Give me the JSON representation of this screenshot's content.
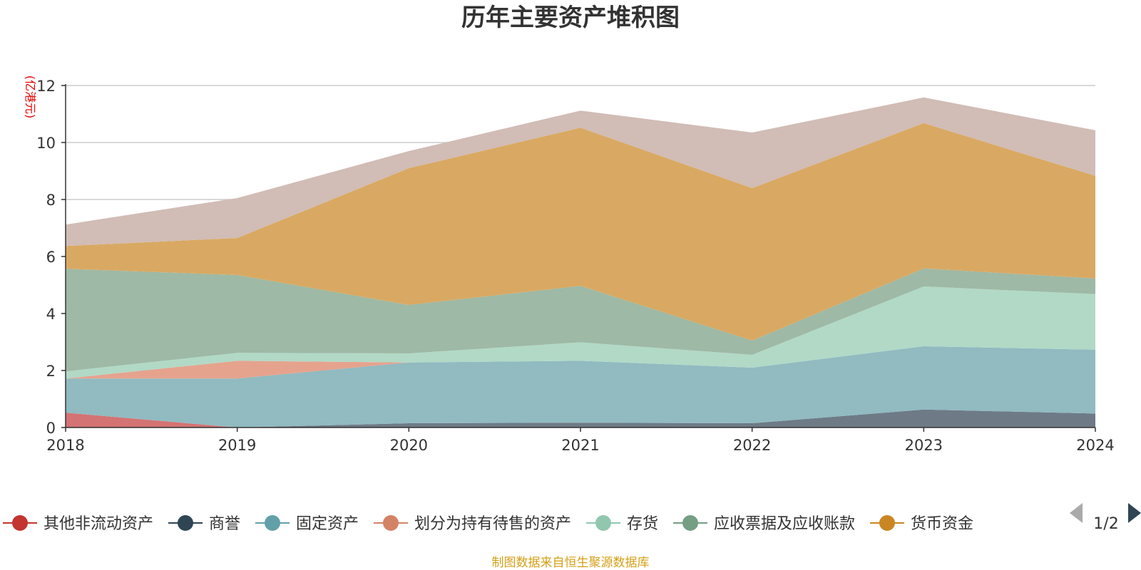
{
  "chart_data": {
    "type": "area",
    "stacked": true,
    "title": "历年主要资产堆积图",
    "unit_label": "(亿港元)",
    "source_note": "制图数据来自恒生聚源数据库",
    "categories": [
      "2018",
      "2019",
      "2020",
      "2021",
      "2022",
      "2023",
      "2024"
    ],
    "ylim": [
      0,
      12
    ],
    "yticks": [
      0,
      2,
      4,
      6,
      8,
      10,
      12
    ],
    "grid": true,
    "legend_position": "bottom",
    "legend_page": "1/2",
    "series": [
      {
        "name": "其他非流动资产",
        "color": "#c23531",
        "fill": "#d47373",
        "values": [
          0.52,
          0.0,
          0.0,
          0.0,
          0.0,
          0.0,
          0.0
        ]
      },
      {
        "name": "商誉",
        "color": "#2f4554",
        "fill": "#6e7b86",
        "values": [
          0.0,
          0.0,
          0.15,
          0.17,
          0.15,
          0.63,
          0.49
        ]
      },
      {
        "name": "固定资产",
        "color": "#61a0a8",
        "fill": "#91bac1",
        "values": [
          1.2,
          1.72,
          2.13,
          2.17,
          1.95,
          2.22,
          2.24
        ]
      },
      {
        "name": "划分为持有待售的资产",
        "color": "#d48265",
        "fill": "#e5a38e",
        "values": [
          0.0,
          0.62,
          0.0,
          0.0,
          0.0,
          0.0,
          0.0
        ]
      },
      {
        "name": "存货",
        "color": "#91c7ae",
        "fill": "#b1d9c6",
        "values": [
          0.25,
          0.28,
          0.32,
          0.65,
          0.45,
          2.1,
          1.95
        ]
      },
      {
        "name": "应收票据及应收账款",
        "color": "#749f83",
        "fill": "#9eb9a5",
        "values": [
          3.6,
          2.73,
          1.7,
          1.98,
          0.5,
          0.63,
          0.55
        ]
      },
      {
        "name": "货币资金",
        "color": "#ca8622",
        "fill": "#d9a963",
        "values": [
          0.8,
          1.3,
          4.8,
          5.55,
          5.35,
          5.1,
          3.6
        ]
      },
      {
        "name": "",
        "color": "#bda29a",
        "fill": "#d1bcb6",
        "values": [
          0.75,
          1.4,
          0.6,
          0.6,
          1.95,
          0.9,
          1.6
        ]
      }
    ]
  },
  "pager_prev_icon": "triangle-left-icon",
  "pager_next_icon": "triangle-right-icon"
}
